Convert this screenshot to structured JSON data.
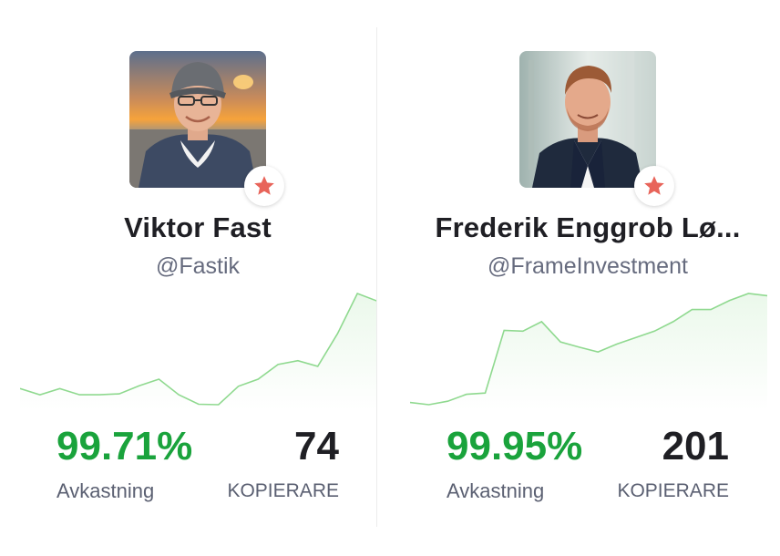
{
  "colors": {
    "return_green": "#1aa33c",
    "spark_line": "#8fd98f",
    "star": "#e8645a",
    "text_dark": "#1f1f24",
    "text_muted": "#5b6072"
  },
  "investors": [
    {
      "name": "Viktor Fast",
      "handle": "@Fastik",
      "return_value": "99.71%",
      "return_label": "Avkastning",
      "copiers_value": "74",
      "copiers_label": "KOPIERARE",
      "avatar_icon": "person-photo-icon",
      "badge_icon": "star-icon",
      "sparkline": [
        0.82,
        0.69,
        0.82,
        0.69,
        0.69,
        0.71,
        0.88,
        1.02,
        0.69,
        0.49,
        0.48,
        0.87,
        1.02,
        1.33,
        1.41,
        1.29,
        1.98,
        2.83,
        2.67
      ]
    },
    {
      "name": "Frederik Enggrob Lø...",
      "handle": "@FrameInvestment",
      "return_value": "99.95%",
      "return_label": "Avkastning",
      "copiers_value": "201",
      "copiers_label": "KOPIERARE",
      "avatar_icon": "person-photo-icon",
      "badge_icon": "star-icon",
      "sparkline": [
        0.05,
        0.0,
        0.08,
        0.24,
        0.27,
        1.72,
        1.7,
        1.92,
        1.45,
        1.33,
        1.22,
        1.4,
        1.55,
        1.7,
        1.92,
        2.2,
        2.2,
        2.41,
        2.57,
        2.52
      ]
    }
  ]
}
